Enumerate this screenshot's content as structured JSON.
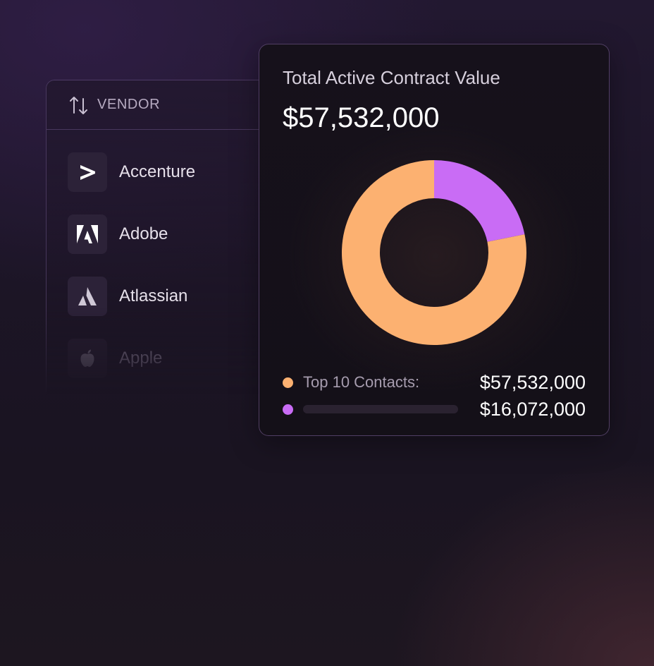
{
  "vendor_panel": {
    "header": {
      "sort_icon": "sort-arrows-icon",
      "title": "VENDOR"
    },
    "items": [
      {
        "name": "Accenture",
        "icon": "accenture-logo-icon"
      },
      {
        "name": "Adobe",
        "icon": "adobe-logo-icon"
      },
      {
        "name": "Atlassian",
        "icon": "atlassian-logo-icon"
      },
      {
        "name": "Apple",
        "icon": "apple-logo-icon"
      }
    ]
  },
  "contract_card": {
    "title": "Total Active Contract Value",
    "total": "$57,532,000",
    "legend": [
      {
        "label": "Top 10 Contacts:",
        "value": "$57,532,000",
        "color": "#fcb171"
      },
      {
        "label": "",
        "value": "$16,072,000",
        "color": "#c96cf5"
      }
    ]
  },
  "chart_data": {
    "type": "pie",
    "donut": true,
    "categories": [
      "Top 10 Contacts",
      ""
    ],
    "values": [
      57532000,
      16072000
    ],
    "colors": [
      "#fcb171",
      "#c96cf5"
    ],
    "title": "Total Active Contract Value"
  },
  "colors": {
    "orange": "#fcb171",
    "purple": "#c96cf5"
  }
}
